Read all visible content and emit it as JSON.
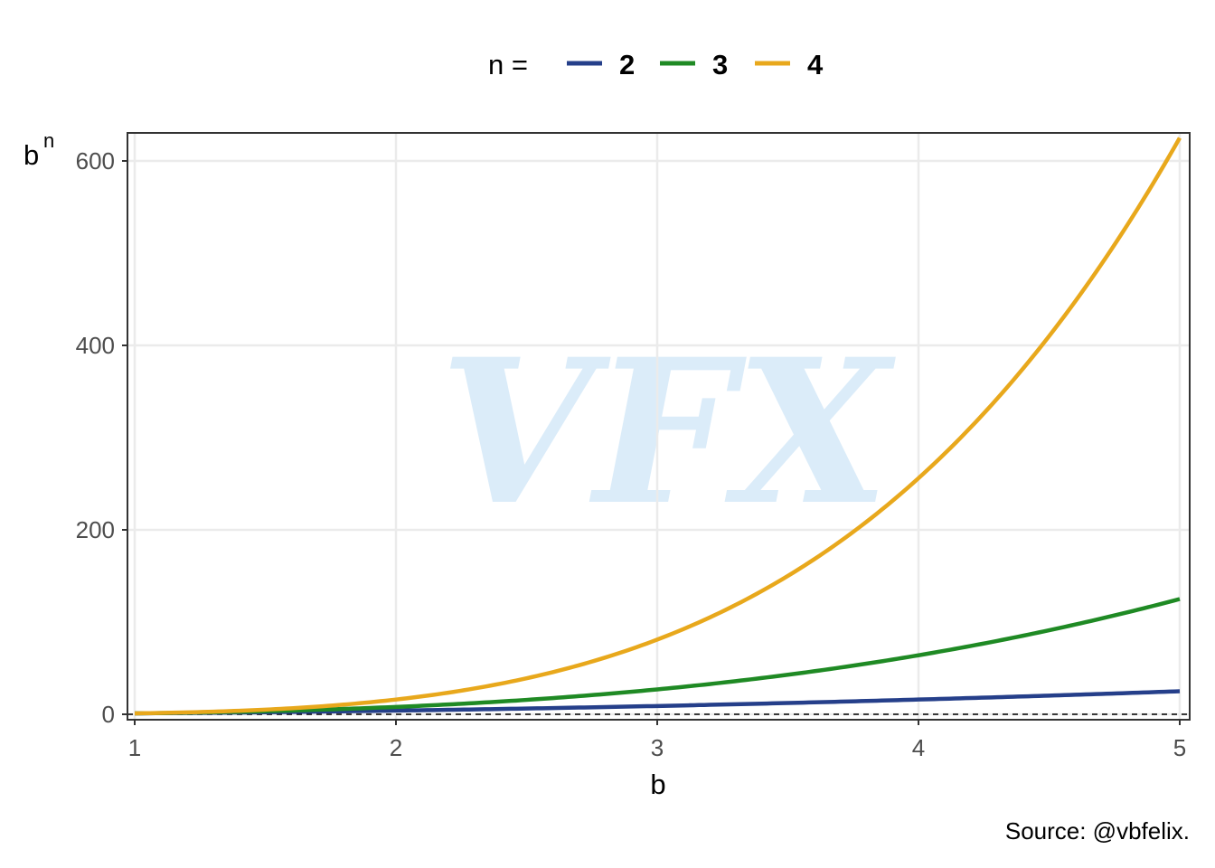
{
  "legend": {
    "title": "n =",
    "placement": "top"
  },
  "caption": "Source: @vbfelix.",
  "watermark": "VFX",
  "chart_data": {
    "type": "line",
    "title": "",
    "xlabel": "b",
    "ylabel": "b",
    "ylabel_superscript": "n",
    "xlim": [
      1,
      5
    ],
    "ylim": [
      0,
      625
    ],
    "x_ticks": [
      1,
      2,
      3,
      4,
      5
    ],
    "y_ticks": [
      0,
      200,
      400,
      600
    ],
    "grid": true,
    "reference_line": {
      "y": 0,
      "style": "dashed"
    },
    "series": [
      {
        "name": "2",
        "color": "#253f8a",
        "x": [
          1,
          1.5,
          2,
          2.5,
          3,
          3.5,
          4,
          4.5,
          5
        ],
        "values": [
          1,
          2.25,
          4,
          6.25,
          9,
          12.25,
          16,
          20.25,
          25
        ]
      },
      {
        "name": "3",
        "color": "#1f8a24",
        "x": [
          1,
          1.5,
          2,
          2.5,
          3,
          3.5,
          4,
          4.5,
          5
        ],
        "values": [
          1,
          3.375,
          8,
          15.625,
          27,
          42.875,
          64,
          91.125,
          125
        ]
      },
      {
        "name": "4",
        "color": "#e8a81c",
        "x": [
          1,
          1.25,
          1.5,
          1.75,
          2,
          2.25,
          2.5,
          2.75,
          3,
          3.25,
          3.5,
          3.75,
          4,
          4.25,
          4.5,
          4.75,
          5
        ],
        "values": [
          1,
          2.44,
          5.06,
          9.38,
          16,
          25.63,
          39.06,
          57.19,
          81,
          111.57,
          150.06,
          197.75,
          256,
          326.25,
          410.06,
          509.07,
          625
        ]
      }
    ]
  }
}
